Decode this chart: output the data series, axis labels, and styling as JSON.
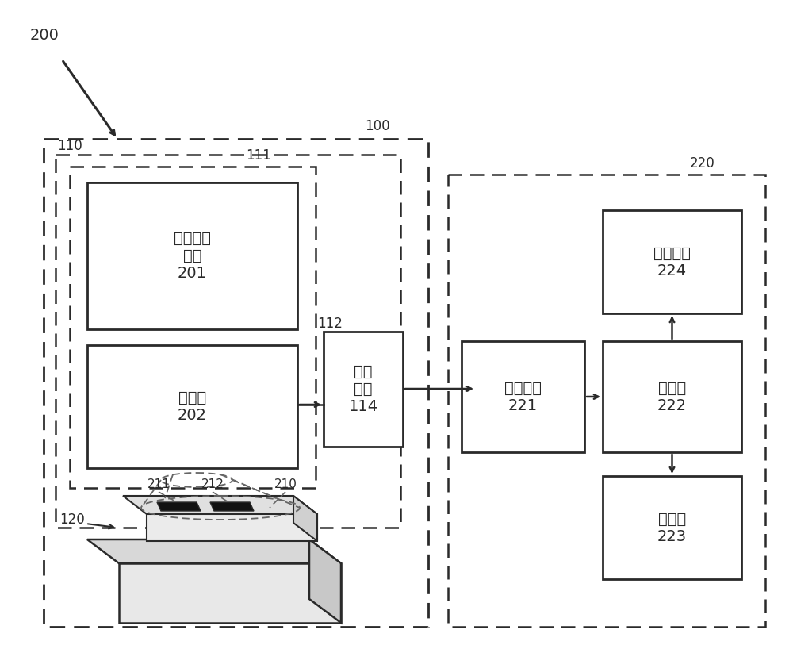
{
  "bg_color": "#ffffff",
  "label_200": "200",
  "label_100": "100",
  "label_110": "110",
  "label_111": "111",
  "label_112": "112",
  "label_114": "114",
  "label_120": "120",
  "label_210": "210",
  "label_211": "211",
  "label_212": "212",
  "label_220": "220",
  "label_221": "221",
  "label_222": "222",
  "label_223": "223",
  "label_224": "224",
  "text_201": "感光元件\n模组\n201",
  "text_202": "镜片组\n202",
  "text_114": "调焦\n装置\n114",
  "text_221": "通讯介面\n221",
  "text_222": "处理器\n222",
  "text_223": "显示器\n223",
  "text_224": "储存装置\n224",
  "line_color": "#2a2a2a",
  "font_size_label": 12,
  "font_size_text": 14
}
